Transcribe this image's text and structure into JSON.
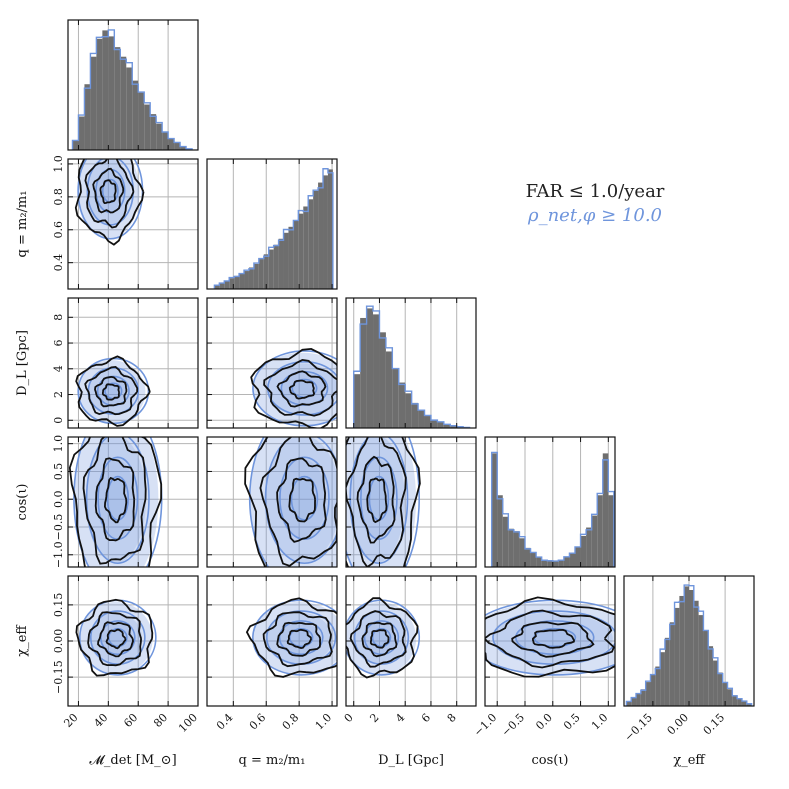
{
  "chart_data": {
    "type": "scatter",
    "plot_kind": "corner plot",
    "parameters": [
      {
        "label": "𝓜_det [M_⊙]",
        "range": [
          13,
          100
        ],
        "ticks": [
          20,
          40,
          60,
          80,
          100
        ]
      },
      {
        "label": "q = m₂/m₁",
        "range": [
          0.24,
          1.03
        ],
        "ticks": [
          0.4,
          0.6,
          0.8,
          1.0
        ]
      },
      {
        "label": "D_L [Gpc]",
        "range": [
          -0.6,
          9.5
        ],
        "ticks": [
          0,
          2,
          4,
          6,
          8
        ]
      },
      {
        "label": "cos(ι)",
        "range": [
          -1.22,
          1.12
        ],
        "ticks": [
          -1.0,
          -0.5,
          0.0,
          0.5,
          1.0
        ]
      },
      {
        "label": "χ_eff",
        "range": [
          -0.27,
          0.27
        ],
        "ticks": [
          -0.15,
          0.0,
          0.15
        ]
      }
    ],
    "tick_labels": {
      "0": [
        "20",
        "40",
        "60",
        "80",
        "100"
      ],
      "1": [
        "0.4",
        "0.6",
        "0.8",
        "1.0"
      ],
      "2": [
        "0",
        "2",
        "4",
        "6",
        "8"
      ],
      "3": [
        "−1.0",
        "−0.5",
        "0.0",
        "0.5",
        "1.0"
      ],
      "4": [
        "−0.15",
        "0.00",
        "0.15"
      ]
    },
    "series": [
      {
        "name": "FAR ≤ 1.0/year",
        "color": "#111111",
        "hist_color": "#6e6e6e"
      },
      {
        "name": "ρ_net,φ ≥ 10.0",
        "color": "#6f95dc"
      }
    ],
    "histograms": {
      "0": {
        "bins": [
          18,
          22,
          26,
          30,
          34,
          38,
          42,
          46,
          50,
          54,
          58,
          62,
          66,
          70,
          74,
          78,
          82,
          86,
          90,
          94
        ],
        "counts": [
          0.08,
          0.28,
          0.55,
          0.78,
          0.93,
          1.0,
          0.95,
          0.86,
          0.78,
          0.69,
          0.58,
          0.48,
          0.38,
          0.3,
          0.22,
          0.15,
          0.1,
          0.06,
          0.03,
          0.01
        ]
      },
      "1": {
        "bins": [
          0.3,
          0.33,
          0.36,
          0.39,
          0.42,
          0.45,
          0.48,
          0.51,
          0.54,
          0.57,
          0.6,
          0.63,
          0.66,
          0.69,
          0.72,
          0.75,
          0.78,
          0.81,
          0.84,
          0.87,
          0.9,
          0.93,
          0.96,
          0.99
        ],
        "counts": [
          0.03,
          0.05,
          0.07,
          0.09,
          0.11,
          0.13,
          0.15,
          0.18,
          0.21,
          0.25,
          0.29,
          0.33,
          0.37,
          0.42,
          0.47,
          0.52,
          0.57,
          0.63,
          0.69,
          0.75,
          0.82,
          0.89,
          0.95,
          1.0
        ]
      },
      "2": {
        "bins": [
          0.25,
          0.75,
          1.25,
          1.75,
          2.25,
          2.75,
          3.25,
          3.75,
          4.25,
          4.75,
          5.25,
          5.75,
          6.25,
          6.75,
          7.25,
          7.75,
          8.25,
          8.75
        ],
        "counts": [
          0.45,
          0.92,
          1.0,
          0.95,
          0.8,
          0.64,
          0.5,
          0.38,
          0.29,
          0.21,
          0.15,
          0.1,
          0.07,
          0.05,
          0.03,
          0.02,
          0.01,
          0.005
        ]
      },
      "3": {
        "bins": [
          -1.05,
          -0.95,
          -0.85,
          -0.75,
          -0.65,
          -0.55,
          -0.45,
          -0.35,
          -0.25,
          -0.15,
          -0.05,
          0.05,
          0.15,
          0.25,
          0.35,
          0.45,
          0.55,
          0.65,
          0.75,
          0.85,
          0.95,
          1.05
        ],
        "counts": [
          0.95,
          0.6,
          0.42,
          0.32,
          0.3,
          0.24,
          0.16,
          0.12,
          0.08,
          0.06,
          0.05,
          0.05,
          0.06,
          0.08,
          0.12,
          0.17,
          0.26,
          0.33,
          0.43,
          0.6,
          0.95,
          0.6
        ]
      },
      "4": {
        "bins": [
          -0.25,
          -0.23,
          -0.21,
          -0.19,
          -0.17,
          -0.15,
          -0.13,
          -0.11,
          -0.09,
          -0.07,
          -0.05,
          -0.03,
          -0.01,
          0.01,
          0.03,
          0.05,
          0.07,
          0.09,
          0.11,
          0.13,
          0.15,
          0.17,
          0.19,
          0.21,
          0.23,
          0.25
        ],
        "counts": [
          0.04,
          0.07,
          0.1,
          0.14,
          0.2,
          0.26,
          0.33,
          0.45,
          0.57,
          0.7,
          0.82,
          0.92,
          1.0,
          0.97,
          0.88,
          0.76,
          0.63,
          0.5,
          0.38,
          0.28,
          0.2,
          0.14,
          0.09,
          0.06,
          0.04,
          0.02
        ]
      }
    },
    "contour_centers": {
      "1_0": {
        "x": 40,
        "y": 0.83,
        "sx": 11,
        "sy": 0.15
      },
      "2_0": {
        "x": 42,
        "y": 2.2,
        "sx": 12,
        "sy": 1.3
      },
      "2_1": {
        "x": 0.82,
        "y": 2.4,
        "sx": 0.16,
        "sy": 1.5
      },
      "3_0": {
        "x": 45,
        "y": 0.0,
        "sx": 15,
        "sy": 0.85
      },
      "3_1": {
        "x": 0.82,
        "y": 0.0,
        "sx": 0.17,
        "sy": 0.85
      },
      "3_2": {
        "x": 1.8,
        "y": 0.0,
        "sx": 1.6,
        "sy": 0.85
      },
      "4_0": {
        "x": 45,
        "y": 0.01,
        "sx": 13,
        "sy": 0.08
      },
      "4_1": {
        "x": 0.8,
        "y": 0.01,
        "sx": 0.15,
        "sy": 0.08
      },
      "4_2": {
        "x": 2.0,
        "y": 0.01,
        "sx": 1.5,
        "sy": 0.08
      },
      "4_3": {
        "x": 0.0,
        "y": 0.01,
        "sx": 0.8,
        "sy": 0.08
      }
    },
    "grid": true,
    "legend_position": "upper-right"
  },
  "legend": {
    "far": "FAR ≤ 1.0/year",
    "snr": "ρ_net,φ ≥ 10.0"
  },
  "colors": {
    "black": "#111111",
    "blue": "#6f95dc",
    "hist_gray": "#6e6e6e"
  }
}
